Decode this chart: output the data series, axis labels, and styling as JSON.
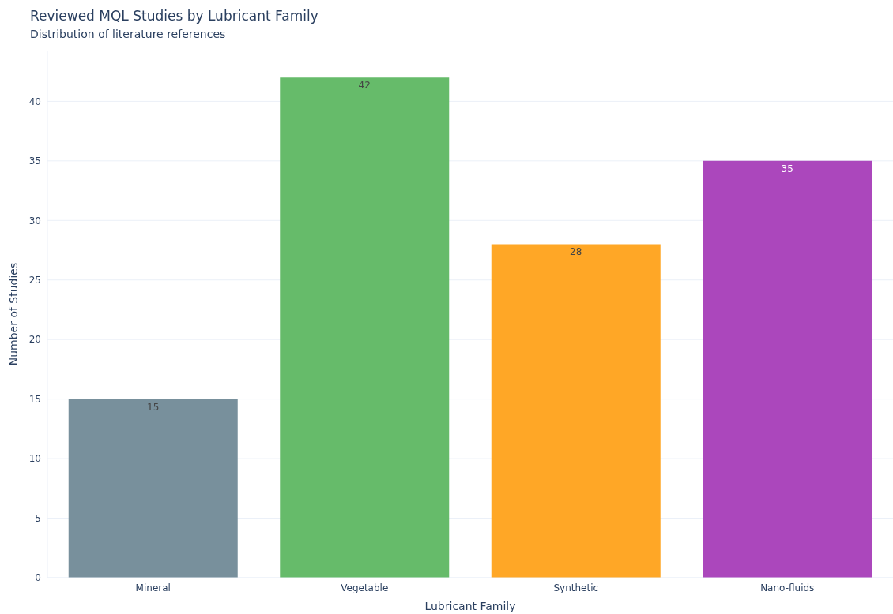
{
  "chart_data": {
    "type": "bar",
    "title": "Reviewed MQL Studies by Lubricant Family",
    "subtitle": "Distribution of literature references",
    "xlabel": "Lubricant Family",
    "ylabel": "Number of Studies",
    "categories": [
      "Mineral",
      "Vegetable",
      "Synthetic",
      "Nano-fluids"
    ],
    "values": [
      15,
      42,
      28,
      35
    ],
    "colors": [
      "#78909c",
      "#66bb6a",
      "#ffa726",
      "#ab47bc"
    ],
    "ylim": [
      0,
      44.2
    ],
    "yticks": [
      0,
      5,
      10,
      15,
      20,
      25,
      30,
      35,
      40
    ],
    "grid": "y",
    "data_labels": true
  }
}
